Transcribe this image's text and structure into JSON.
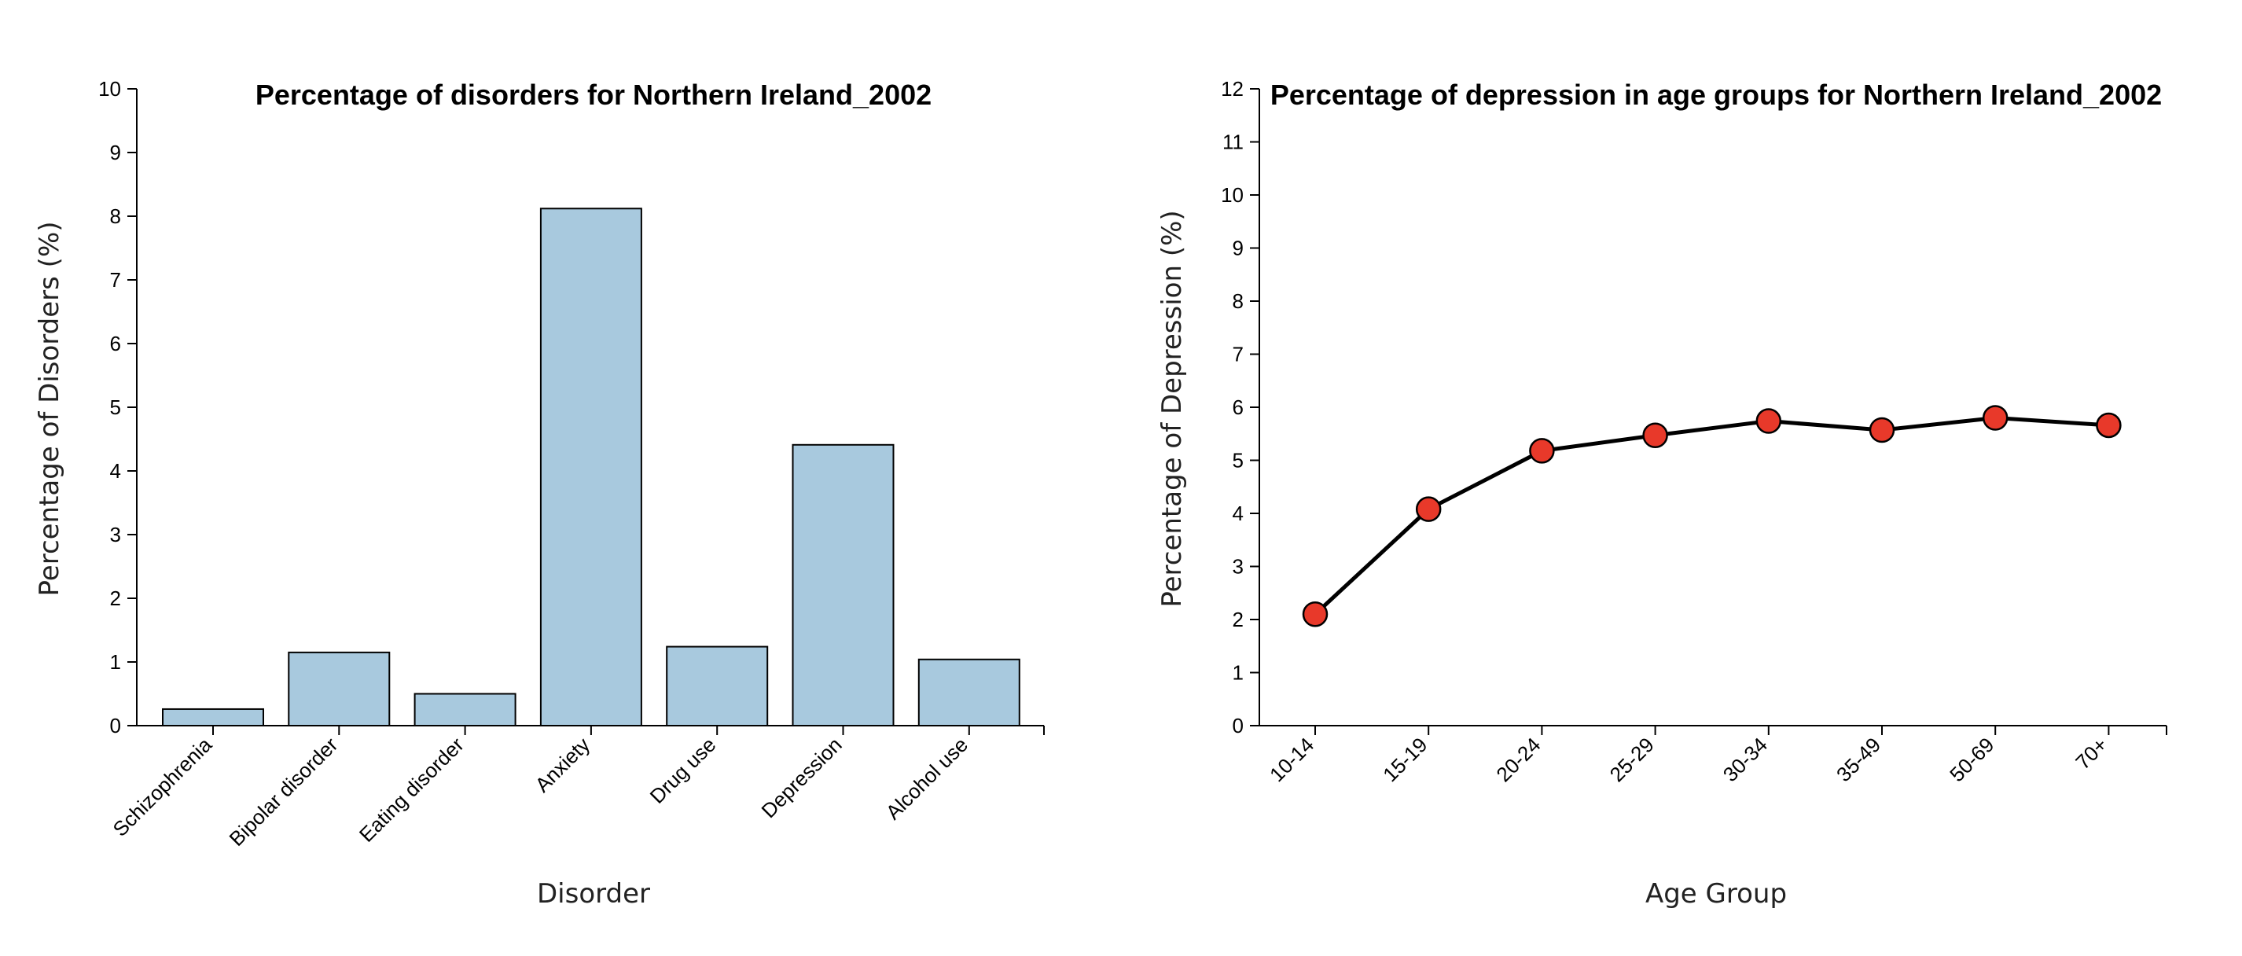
{
  "chart_data": [
    {
      "type": "bar",
      "title": "Percentage of disorders for Northern Ireland_2002",
      "xlabel": "Disorder",
      "ylabel": "Percentage of Disorders (%)",
      "ylim": [
        0,
        10
      ],
      "yticks": [
        0,
        1,
        2,
        3,
        4,
        5,
        6,
        7,
        8,
        9,
        10
      ],
      "categories": [
        "Schizophrenia",
        "Bipolar disorder",
        "Eating disorder",
        "Anxiety",
        "Drug use",
        "Depression",
        "Alcohol use"
      ],
      "values": [
        0.26,
        1.15,
        0.5,
        8.12,
        1.24,
        4.41,
        1.04
      ],
      "bar_color": "#a8c9de",
      "bar_edge_color": "#000000",
      "grid": false
    },
    {
      "type": "line",
      "title": "Percentage of depression in age groups for Northern Ireland_2002",
      "xlabel": "Age Group",
      "ylabel": "Percentage of Depression (%)",
      "ylim": [
        0,
        12
      ],
      "yticks": [
        0,
        1,
        2,
        3,
        4,
        5,
        6,
        7,
        8,
        9,
        10,
        11,
        12
      ],
      "categories": [
        "10-14",
        "15-19",
        "20-24",
        "25-29",
        "30-34",
        "35-49",
        "50-69",
        "70+"
      ],
      "values": [
        2.1,
        4.08,
        5.18,
        5.47,
        5.74,
        5.57,
        5.8,
        5.66
      ],
      "line_color": "#000000",
      "marker_color": "#e8392a",
      "grid": false
    }
  ]
}
